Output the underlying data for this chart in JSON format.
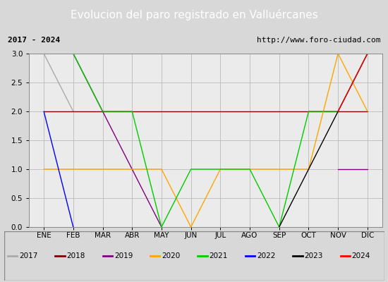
{
  "title": "Evolucion del paro registrado en Valluércanes",
  "subtitle_left": "2017 - 2024",
  "subtitle_right": "http://www.foro-ciudad.com",
  "ylim": [
    0,
    3.0
  ],
  "months": [
    "ENE",
    "FEB",
    "MAR",
    "ABR",
    "MAY",
    "JUN",
    "JUL",
    "AGO",
    "SEP",
    "OCT",
    "NOV",
    "DIC"
  ],
  "series": {
    "2017": {
      "color": "#aaaaaa",
      "data": [
        3,
        2,
        null,
        null,
        null,
        null,
        null,
        null,
        null,
        null,
        null,
        null
      ]
    },
    "2018": {
      "color": "#800000",
      "data": [
        2,
        2,
        2,
        2,
        2,
        2,
        2,
        2,
        2,
        2,
        2,
        2
      ]
    },
    "2019": {
      "color": "#800080",
      "data": [
        3,
        3,
        2,
        1,
        0,
        null,
        null,
        null,
        null,
        null,
        1,
        1
      ]
    },
    "2020": {
      "color": "#ffa500",
      "data": [
        1,
        1,
        1,
        1,
        1,
        0,
        1,
        1,
        1,
        1,
        3,
        2
      ]
    },
    "2021": {
      "color": "#00cc00",
      "data": [
        3,
        3,
        2,
        2,
        0,
        1,
        1,
        1,
        0,
        2,
        2,
        null
      ]
    },
    "2022": {
      "color": "#0000ff",
      "data": [
        2,
        0,
        null,
        null,
        null,
        null,
        null,
        null,
        null,
        null,
        null,
        null
      ]
    },
    "2023": {
      "color": "#000000",
      "data": [
        null,
        null,
        null,
        null,
        null,
        null,
        null,
        null,
        0,
        1,
        2,
        3
      ]
    },
    "2024": {
      "color": "#ff0000",
      "data": [
        null,
        null,
        null,
        null,
        null,
        null,
        null,
        null,
        null,
        null,
        2,
        3
      ]
    }
  },
  "background_color": "#d8d8d8",
  "plot_bg_color": "#ebebeb",
  "title_bg_color": "#4472c4",
  "title_color": "#ffffff",
  "title_fontsize": 11,
  "subtitle_fontsize": 8,
  "legend_years": [
    "2017",
    "2018",
    "2019",
    "2020",
    "2021",
    "2022",
    "2023",
    "2024"
  ],
  "legend_colors": [
    "#aaaaaa",
    "#800000",
    "#800080",
    "#ffa500",
    "#00cc00",
    "#0000ff",
    "#000000",
    "#ff0000"
  ]
}
